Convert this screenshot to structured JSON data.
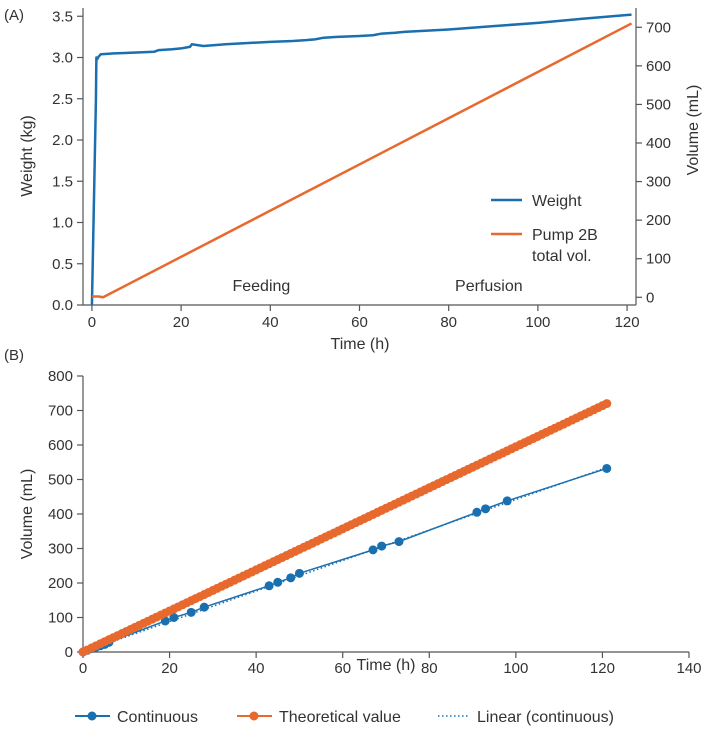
{
  "chart_data": [
    {
      "panel_label": "(A)",
      "type": "line",
      "xlabel": "Time (h)",
      "ylabel": "Weight (kg)",
      "y2label": "Volume (mL)",
      "xlim": [
        -2,
        122
      ],
      "ylim": [
        0,
        3.6
      ],
      "y2lim": [
        -20,
        750
      ],
      "xticks": [
        0,
        20,
        40,
        60,
        80,
        100,
        120
      ],
      "xtick_labels": [
        "0",
        "20",
        "40",
        "60",
        "80",
        "100",
        "120"
      ],
      "yticks": [
        0,
        0.5,
        1.0,
        1.5,
        2.0,
        2.5,
        3.0,
        3.5
      ],
      "ytick_labels": [
        "0.0",
        "0.5",
        "1.0",
        "1.5",
        "2.0",
        "2.5",
        "3.0",
        "3.5"
      ],
      "y2ticks": [
        0,
        100,
        200,
        300,
        400,
        500,
        600,
        700
      ],
      "y2tick_labels": [
        "0",
        "100",
        "200",
        "300",
        "400",
        "500",
        "600",
        "700"
      ],
      "annotations": [
        {
          "text": "Feeding",
          "x": 38,
          "y": 0.17
        },
        {
          "text": "Perfusion",
          "x": 89,
          "y": 0.17
        }
      ],
      "legend_position": "lower-right",
      "series": [
        {
          "name": "Weight",
          "axis": "left",
          "color": "#1a6fb0",
          "x": [
            0,
            0.9,
            1.0,
            1.2,
            1.5,
            2,
            5,
            10,
            14,
            15,
            18,
            20,
            21,
            22,
            22.4,
            25,
            30,
            40,
            45,
            48,
            50,
            52,
            55,
            60,
            63,
            65,
            68,
            70,
            80,
            90,
            100,
            110,
            121
          ],
          "y": [
            0,
            2.5,
            3.0,
            2.98,
            3.01,
            3.04,
            3.05,
            3.06,
            3.07,
            3.09,
            3.1,
            3.11,
            3.12,
            3.13,
            3.16,
            3.14,
            3.16,
            3.19,
            3.2,
            3.21,
            3.22,
            3.24,
            3.25,
            3.26,
            3.27,
            3.29,
            3.3,
            3.31,
            3.34,
            3.38,
            3.42,
            3.47,
            3.52
          ]
        },
        {
          "name": "Pump 2B",
          "name_line2": "total vol.",
          "axis": "right",
          "color": "#e8692e",
          "x": [
            0,
            1.5,
            2.5,
            121
          ],
          "y": [
            2,
            2,
            0,
            710
          ]
        }
      ]
    },
    {
      "panel_label": "(B)",
      "type": "scatter",
      "xlabel": "Time (h)",
      "ylabel": "Volume (mL)",
      "xlim": [
        0,
        140
      ],
      "ylim": [
        0,
        800
      ],
      "xticks": [
        0,
        20,
        40,
        60,
        80,
        100,
        120,
        140
      ],
      "xtick_labels": [
        "0",
        "20",
        "40",
        "60",
        "80",
        "100",
        "120",
        "140"
      ],
      "yticks": [
        0,
        100,
        200,
        300,
        400,
        500,
        600,
        700,
        800
      ],
      "ytick_labels": [
        "0",
        "100",
        "200",
        "300",
        "400",
        "500",
        "600",
        "700",
        "800"
      ],
      "legend_position": "bottom",
      "series": [
        {
          "name": "Continuous",
          "color": "#1a6fb0",
          "x": [
            0,
            1,
            2,
            3,
            4,
            5,
            6,
            19,
            21,
            25,
            28,
            43,
            45,
            48,
            50,
            67,
            69,
            73,
            91,
            93,
            98,
            121
          ],
          "y": [
            0,
            5,
            10,
            14,
            18,
            22,
            28,
            90,
            100,
            115,
            130,
            192,
            202,
            215,
            228,
            296,
            307,
            320,
            405,
            415,
            438,
            532
          ]
        },
        {
          "name": "Theoretical value",
          "color": "#e8692e",
          "x_start": 0,
          "x_end": 121,
          "x_step": 1,
          "slope": 5.95,
          "intercept": 0
        },
        {
          "name": "Linear (continuous)",
          "color": "#1a6fb0",
          "style": "dotted",
          "slope": 4.42,
          "intercept": 0,
          "x_range": [
            0,
            121
          ]
        }
      ]
    }
  ]
}
